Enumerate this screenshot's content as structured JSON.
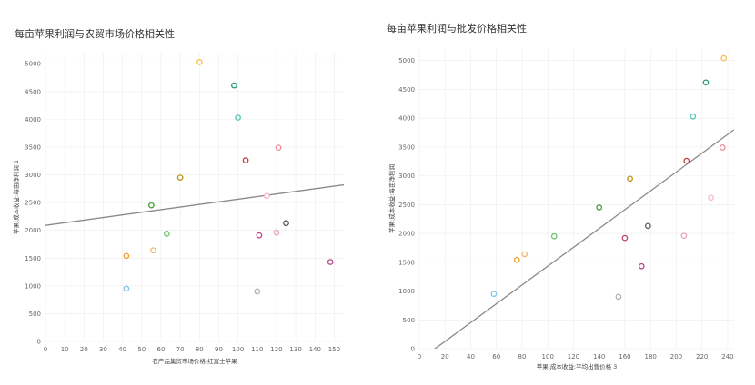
{
  "chart_data": [
    {
      "type": "scatter",
      "title": "每亩苹果利润与农贸市场价格相关性",
      "xlabel": "农产品集贸市场价格:红富士苹果",
      "ylabel": "苹果:成本收益:每亩净利润 1",
      "xlim": [
        0,
        155
      ],
      "ylim": [
        0,
        5200
      ],
      "xticks": [
        "0",
        "10",
        "20",
        "30",
        "40",
        "50",
        "60",
        "70",
        "80",
        "90",
        "100",
        "110",
        "120",
        "130",
        "140",
        "150"
      ],
      "yticks": [
        "0",
        "500",
        "1000",
        "1500",
        "2000",
        "2500",
        "3000",
        "3500",
        "4000",
        "4500",
        "5000"
      ],
      "grid": true,
      "trendline": {
        "x": [
          0,
          155
        ],
        "y": [
          2090,
          2820
        ]
      },
      "points": [
        {
          "x": 42,
          "y": 950,
          "color": "#7cc4ec"
        },
        {
          "x": 42,
          "y": 1540,
          "color": "#f39a27"
        },
        {
          "x": 56,
          "y": 1640,
          "color": "#f6b26b"
        },
        {
          "x": 55,
          "y": 2450,
          "color": "#3f9d2f"
        },
        {
          "x": 63,
          "y": 1940,
          "color": "#6cc26a"
        },
        {
          "x": 70,
          "y": 2950,
          "color": "#b8920f"
        },
        {
          "x": 80,
          "y": 5030,
          "color": "#f4c04e"
        },
        {
          "x": 98,
          "y": 4610,
          "color": "#1a9b7a"
        },
        {
          "x": 100,
          "y": 4030,
          "color": "#4cc3b0"
        },
        {
          "x": 104,
          "y": 3260,
          "color": "#c83a3a"
        },
        {
          "x": 110,
          "y": 900,
          "color": "#b0b0b0"
        },
        {
          "x": 111,
          "y": 1910,
          "color": "#c0417d"
        },
        {
          "x": 115,
          "y": 2620,
          "color": "#f5b8c8"
        },
        {
          "x": 120,
          "y": 1960,
          "color": "#e8a3b7"
        },
        {
          "x": 121,
          "y": 3490,
          "color": "#ec8b9a"
        },
        {
          "x": 125,
          "y": 2130,
          "color": "#555555"
        },
        {
          "x": 148,
          "y": 1430,
          "color": "#b4478e"
        }
      ]
    },
    {
      "type": "scatter",
      "title": "每亩苹果利润与批发价格相关性",
      "xlabel": "苹果:成本收益:平均出售价格 3",
      "ylabel": "苹果:成本收益:每亩净利润",
      "xlim": [
        0,
        245
      ],
      "ylim": [
        0,
        5200
      ],
      "xticks": [
        "0",
        "20",
        "40",
        "60",
        "80",
        "100",
        "120",
        "140",
        "160",
        "180",
        "200",
        "220",
        "240"
      ],
      "yticks": [
        "0",
        "500",
        "1000",
        "1500",
        "2000",
        "2500",
        "3000",
        "3500",
        "4000",
        "4500",
        "5000"
      ],
      "grid": true,
      "trendline": {
        "x": [
          0,
          245
        ],
        "y": [
          -200,
          3800
        ]
      },
      "points": [
        {
          "x": 58,
          "y": 950,
          "color": "#7cc4ec"
        },
        {
          "x": 76,
          "y": 1540,
          "color": "#f39a27"
        },
        {
          "x": 82,
          "y": 1640,
          "color": "#f6b26b"
        },
        {
          "x": 140,
          "y": 2450,
          "color": "#3f9d2f"
        },
        {
          "x": 105,
          "y": 1950,
          "color": "#6cc26a"
        },
        {
          "x": 164,
          "y": 2950,
          "color": "#b8920f"
        },
        {
          "x": 237,
          "y": 5040,
          "color": "#f4c04e"
        },
        {
          "x": 223,
          "y": 4620,
          "color": "#1a9b7a"
        },
        {
          "x": 213,
          "y": 4030,
          "color": "#4cc3b0"
        },
        {
          "x": 208,
          "y": 3260,
          "color": "#c83a3a"
        },
        {
          "x": 155,
          "y": 900,
          "color": "#b0b0b0"
        },
        {
          "x": 160,
          "y": 1920,
          "color": "#c0417d"
        },
        {
          "x": 227,
          "y": 2620,
          "color": "#f5b8c8"
        },
        {
          "x": 206,
          "y": 1960,
          "color": "#e8a3b7"
        },
        {
          "x": 236,
          "y": 3490,
          "color": "#ec8b9a"
        },
        {
          "x": 178,
          "y": 2130,
          "color": "#555555"
        },
        {
          "x": 173,
          "y": 1430,
          "color": "#b4478e"
        }
      ]
    }
  ]
}
